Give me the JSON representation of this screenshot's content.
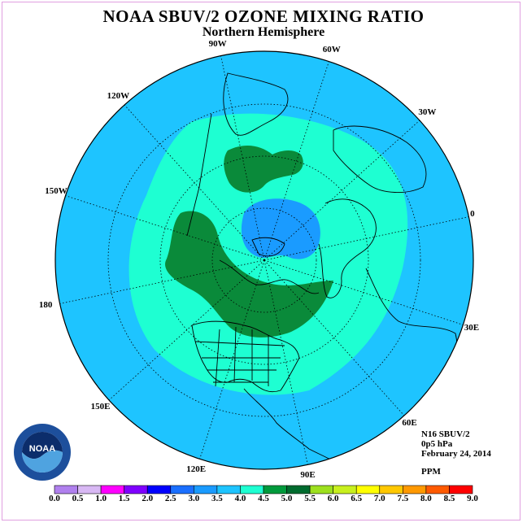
{
  "header": {
    "title": "NOAA SBUV/2 OZONE MIXING RATIO",
    "subtitle": "Northern Hemisphere"
  },
  "meridians": [
    "0",
    "30E",
    "60E",
    "90E",
    "120E",
    "150E",
    "180",
    "150W",
    "120W",
    "90W",
    "60W",
    "30W"
  ],
  "info": {
    "instrument": "N16 SBUV/2",
    "level": "0p5 hPa",
    "date": "February 24, 2014",
    "units": "PPM"
  },
  "logo": {
    "text": "NOAA"
  },
  "colorbar": {
    "labels": [
      "0.0",
      "0.5",
      "1.0",
      "1.5",
      "2.0",
      "2.5",
      "3.0",
      "3.5",
      "4.0",
      "4.5",
      "5.0",
      "5.5",
      "6.0",
      "6.5",
      "7.0",
      "7.5",
      "8.0",
      "8.5",
      "9.0"
    ],
    "colors": [
      "#b080ee",
      "#d8b8f4",
      "#ff00ff",
      "#7f00ff",
      "#0000ff",
      "#1a6fff",
      "#1a9bff",
      "#1ec4ff",
      "#1effd2",
      "#009a3c",
      "#006b2e",
      "#9de01e",
      "#c8f01e",
      "#ffff00",
      "#ffc800",
      "#ff9900",
      "#ff5a00",
      "#ff0000",
      "#8b5a3c"
    ]
  },
  "map_colors": {
    "ocean_band": "#1ec4ff",
    "inner_band": "#1effd2",
    "peak_band": "#0a8a3a",
    "polar_low": "#1a9bff"
  }
}
